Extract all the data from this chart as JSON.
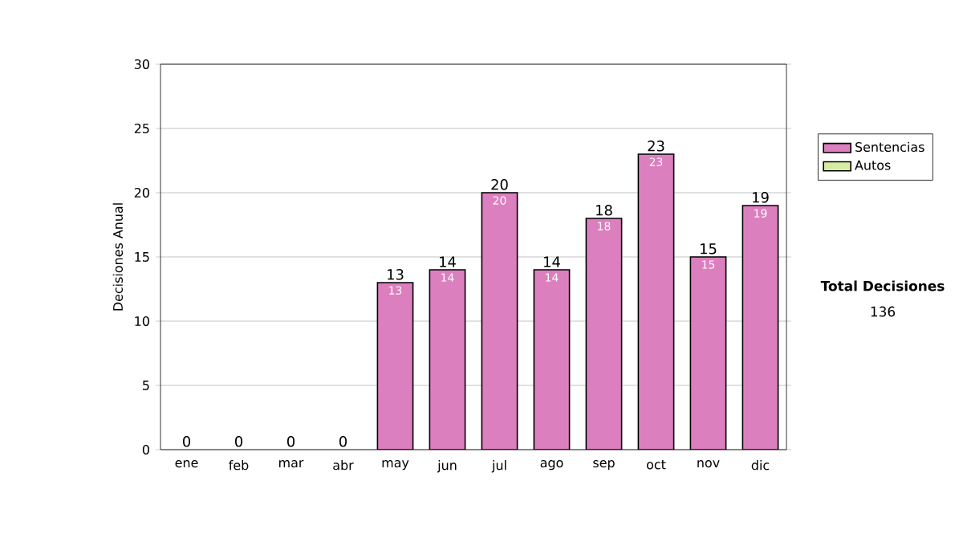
{
  "chart_data": {
    "type": "bar",
    "stacked": true,
    "ylabel": "Decisiones Anual",
    "categories": [
      "ene",
      "feb",
      "mar",
      "abr",
      "may",
      "jun",
      "jul",
      "ago",
      "sep",
      "oct",
      "nov",
      "dic"
    ],
    "series": [
      {
        "name": "Sentencias",
        "color": "#dc7fbf",
        "values": [
          0,
          0,
          0,
          0,
          13,
          14,
          20,
          14,
          18,
          23,
          15,
          19
        ],
        "value_labels": [
          null,
          null,
          null,
          null,
          "13",
          "14",
          "20",
          "14",
          "18",
          "23",
          "15",
          "19"
        ]
      },
      {
        "name": "Autos",
        "color": "#d6eca0",
        "values": [
          0,
          0,
          0,
          0,
          0,
          0,
          0,
          0,
          0,
          0,
          0,
          0
        ]
      }
    ],
    "totals": [
      "0",
      "0",
      "0",
      "0",
      "13",
      "14",
      "20",
      "14",
      "18",
      "23",
      "15",
      "19"
    ],
    "ylim": [
      0,
      30
    ],
    "yticks": [
      0,
      5,
      10,
      15,
      20,
      25,
      30
    ],
    "grid": "y",
    "legend": "right",
    "annotations": [
      "Total Decisiones",
      "136"
    ]
  }
}
